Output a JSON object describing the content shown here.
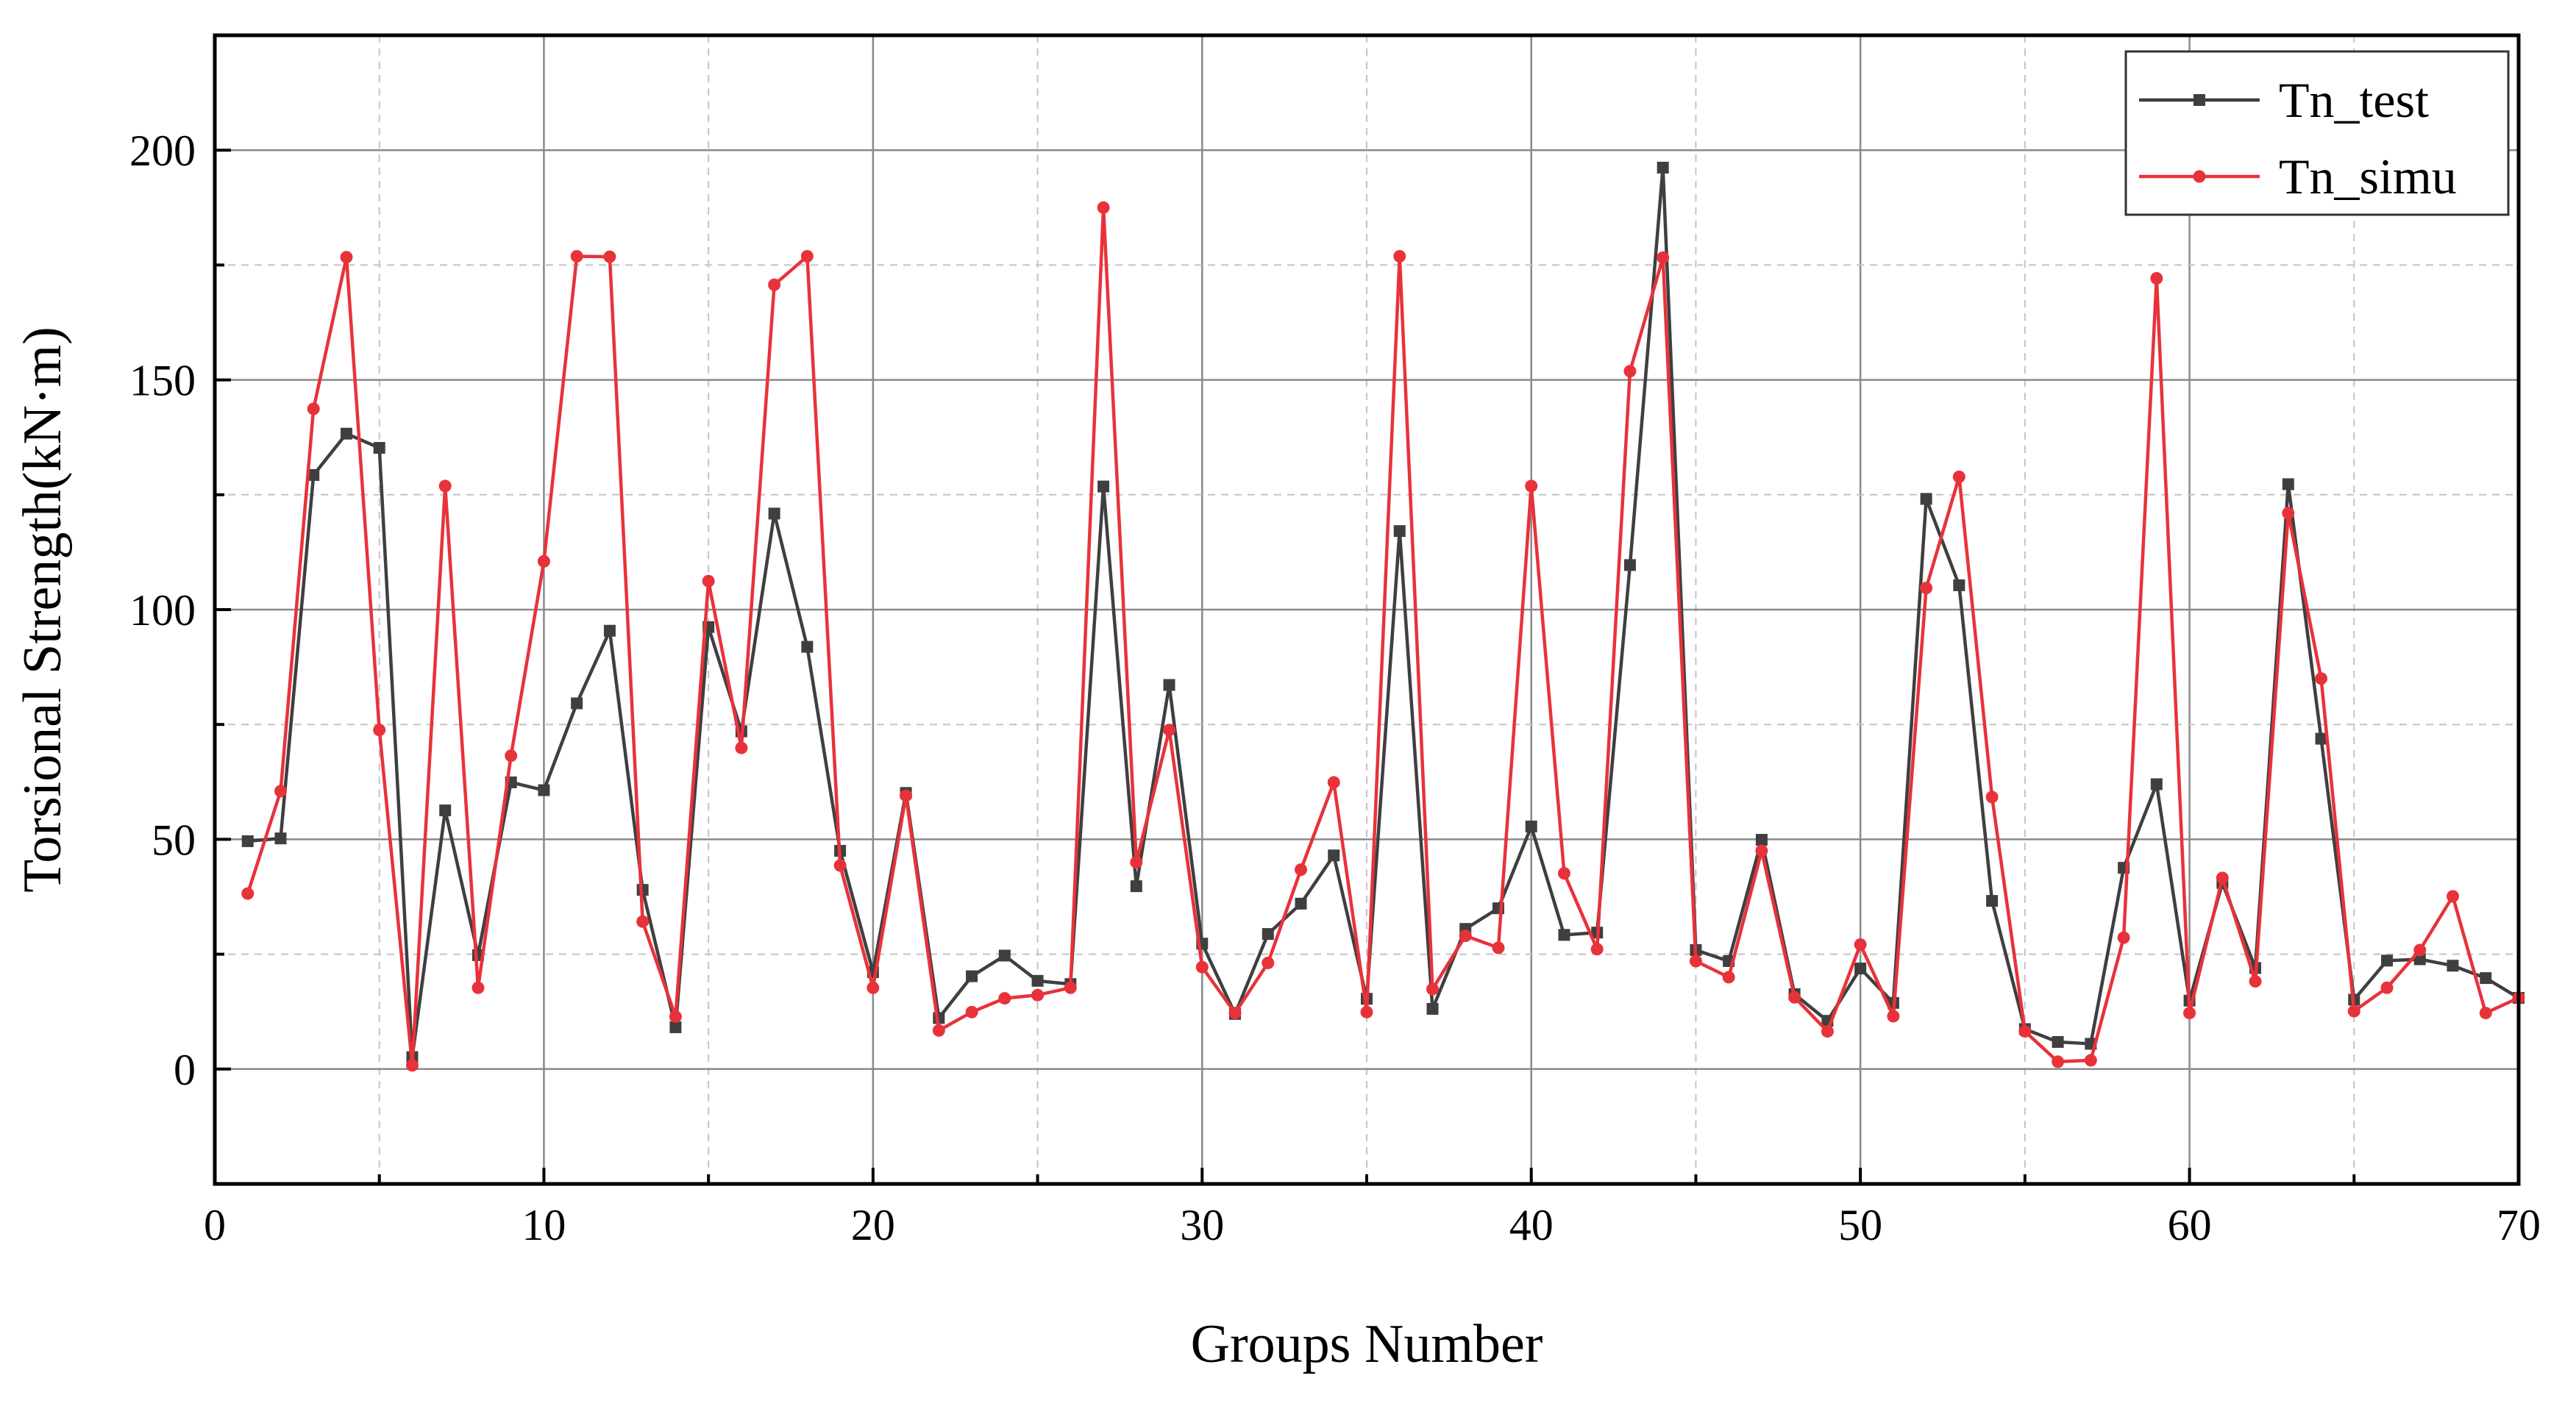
{
  "chart_data": {
    "type": "line",
    "title": "",
    "xlabel": "Groups Number",
    "ylabel": "Torsional Strength(kN·m)",
    "xlim": [
      0,
      70
    ],
    "ylim": [
      -25,
      225
    ],
    "xticks": [
      0,
      10,
      20,
      30,
      40,
      50,
      60,
      70
    ],
    "yticks": [
      0,
      50,
      100,
      150,
      200
    ],
    "grid": true,
    "legend_position": "top-right",
    "x": [
      1,
      2,
      3,
      4,
      5,
      6,
      7,
      8,
      9,
      10,
      11,
      12,
      13,
      14,
      15,
      16,
      17,
      18,
      19,
      20,
      21,
      22,
      23,
      24,
      25,
      26,
      27,
      28,
      29,
      30,
      31,
      32,
      33,
      34,
      35,
      36,
      37,
      38,
      39,
      40,
      41,
      42,
      43,
      44,
      45,
      46,
      47,
      48,
      49,
      50,
      51,
      52,
      53,
      54,
      55,
      56,
      57,
      58,
      59,
      60,
      61,
      62,
      63,
      64,
      65,
      66,
      67,
      68,
      69,
      70
    ],
    "series": [
      {
        "name": "Tn_test",
        "color": "#3f3f3f",
        "marker": "square",
        "values": [
          49.6,
          50.2,
          129.3,
          138.3,
          135.2,
          2.6,
          56.3,
          24.8,
          62.4,
          60.7,
          79.6,
          95.4,
          39.0,
          9.1,
          96.2,
          73.5,
          120.9,
          91.9,
          47.5,
          21.1,
          60.1,
          11.1,
          20.2,
          24.7,
          19.2,
          18.5,
          126.8,
          39.8,
          83.6,
          27.3,
          12.0,
          29.4,
          36.0,
          46.5,
          15.3,
          117.1,
          13.1,
          30.5,
          35.0,
          52.8,
          29.2,
          29.7,
          109.7,
          196.2,
          25.9,
          23.5,
          49.9,
          16.3,
          10.5,
          21.9,
          14.4,
          124.1,
          105.3,
          36.6,
          8.7,
          5.9,
          5.5,
          43.8,
          62.0,
          14.9,
          40.5,
          22.0,
          127.3,
          71.9,
          15.1,
          23.6,
          23.9,
          22.5,
          19.8,
          15.5
        ]
      },
      {
        "name": "Tn_simu",
        "color": "#e8323a",
        "marker": "circle",
        "values": [
          38.2,
          60.5,
          143.7,
          176.7,
          73.8,
          0.8,
          126.9,
          17.7,
          68.2,
          110.5,
          176.9,
          176.8,
          32.1,
          11.4,
          106.2,
          69.9,
          170.7,
          176.9,
          44.3,
          17.7,
          59.5,
          8.4,
          12.4,
          15.4,
          16.1,
          17.7,
          187.5,
          45.0,
          73.8,
          22.2,
          12.2,
          23.1,
          43.4,
          62.4,
          12.4,
          176.9,
          17.4,
          29.0,
          26.4,
          126.9,
          42.6,
          26.1,
          151.9,
          176.6,
          23.5,
          20.0,
          47.5,
          15.6,
          8.2,
          27.1,
          11.5,
          104.7,
          128.9,
          59.2,
          8.2,
          1.6,
          1.9,
          28.6,
          172.1,
          12.2,
          41.6,
          19.1,
          121.0,
          85.0,
          12.6,
          17.7,
          25.9,
          37.6,
          12.2,
          15.5
        ]
      }
    ]
  }
}
